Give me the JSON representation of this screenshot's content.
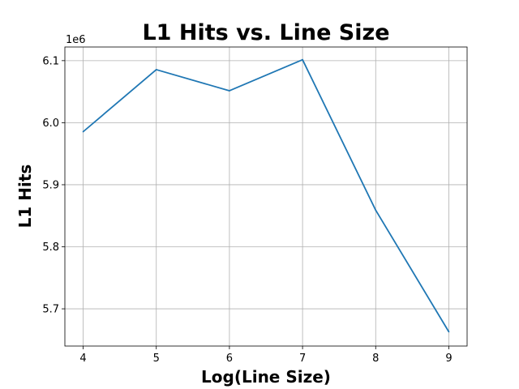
{
  "chart_data": {
    "type": "line",
    "title": "L1 Hits vs. Line Size",
    "xlabel": "Log(Line Size)",
    "ylabel": "L1 Hits",
    "y_offset_label": "1e6",
    "x": [
      4,
      5,
      6,
      7,
      8,
      9
    ],
    "series": [
      {
        "values": [
          5985500,
          6085500,
          6051500,
          6101500,
          5859000,
          5663000
        ],
        "color": "#1f77b4"
      }
    ],
    "xlim": [
      3.75,
      9.25
    ],
    "ylim": [
      5640000,
      6122000
    ],
    "x_ticks": [
      4,
      5,
      6,
      7,
      8,
      9
    ],
    "x_tick_labels": [
      "4",
      "5",
      "6",
      "7",
      "8",
      "9"
    ],
    "y_ticks": [
      5700000,
      5800000,
      5900000,
      6000000,
      6100000
    ],
    "y_tick_labels": [
      "5.7",
      "5.8",
      "5.9",
      "6.0",
      "6.1"
    ],
    "grid": true,
    "legend": false
  }
}
